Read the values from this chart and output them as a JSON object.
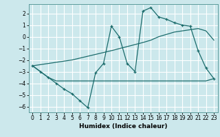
{
  "xlabel": "Humidex (Indice chaleur)",
  "bg_color": "#cce8ec",
  "grid_color": "#ffffff",
  "line_color": "#1a6b6b",
  "xlim": [
    -0.5,
    23.5
  ],
  "ylim": [
    -6.5,
    2.8
  ],
  "yticks": [
    2,
    1,
    0,
    -1,
    -2,
    -3,
    -4,
    -5,
    -6
  ],
  "xticks": [
    0,
    1,
    2,
    3,
    4,
    5,
    6,
    7,
    8,
    9,
    10,
    11,
    12,
    13,
    14,
    15,
    16,
    17,
    18,
    19,
    20,
    21,
    22,
    23
  ],
  "line1_x": [
    0,
    1,
    2,
    3,
    4,
    5,
    6,
    7,
    8,
    9,
    10,
    11,
    12,
    13,
    14,
    15,
    16,
    17,
    18,
    19,
    20,
    21,
    22,
    23
  ],
  "line1_y": [
    -2.5,
    -3.0,
    -3.5,
    -4.0,
    -4.5,
    -4.9,
    -5.5,
    -6.1,
    -3.1,
    -2.3,
    0.9,
    0.0,
    -2.3,
    -3.0,
    2.2,
    2.5,
    1.7,
    1.5,
    1.2,
    1.0,
    0.9,
    -1.2,
    -2.7,
    -3.6
  ],
  "line2_x": [
    0,
    2,
    3,
    4,
    5,
    6,
    7,
    8,
    9,
    10,
    11,
    12,
    13,
    14,
    15,
    16,
    17,
    18,
    19,
    20,
    21,
    22,
    23
  ],
  "line2_y": [
    -2.5,
    -3.5,
    -3.8,
    -3.8,
    -3.8,
    -3.8,
    -3.8,
    -3.8,
    -3.8,
    -3.8,
    -3.8,
    -3.8,
    -3.8,
    -3.8,
    -3.8,
    -3.8,
    -3.8,
    -3.8,
    -3.8,
    -3.8,
    -3.8,
    -3.8,
    -3.6
  ],
  "line3_x": [
    0,
    5,
    10,
    14,
    15,
    16,
    17,
    18,
    19,
    20,
    21,
    22,
    23
  ],
  "line3_y": [
    -2.5,
    -2.0,
    -1.2,
    -0.5,
    -0.3,
    0.0,
    0.2,
    0.4,
    0.5,
    0.6,
    0.7,
    0.5,
    -0.3
  ]
}
